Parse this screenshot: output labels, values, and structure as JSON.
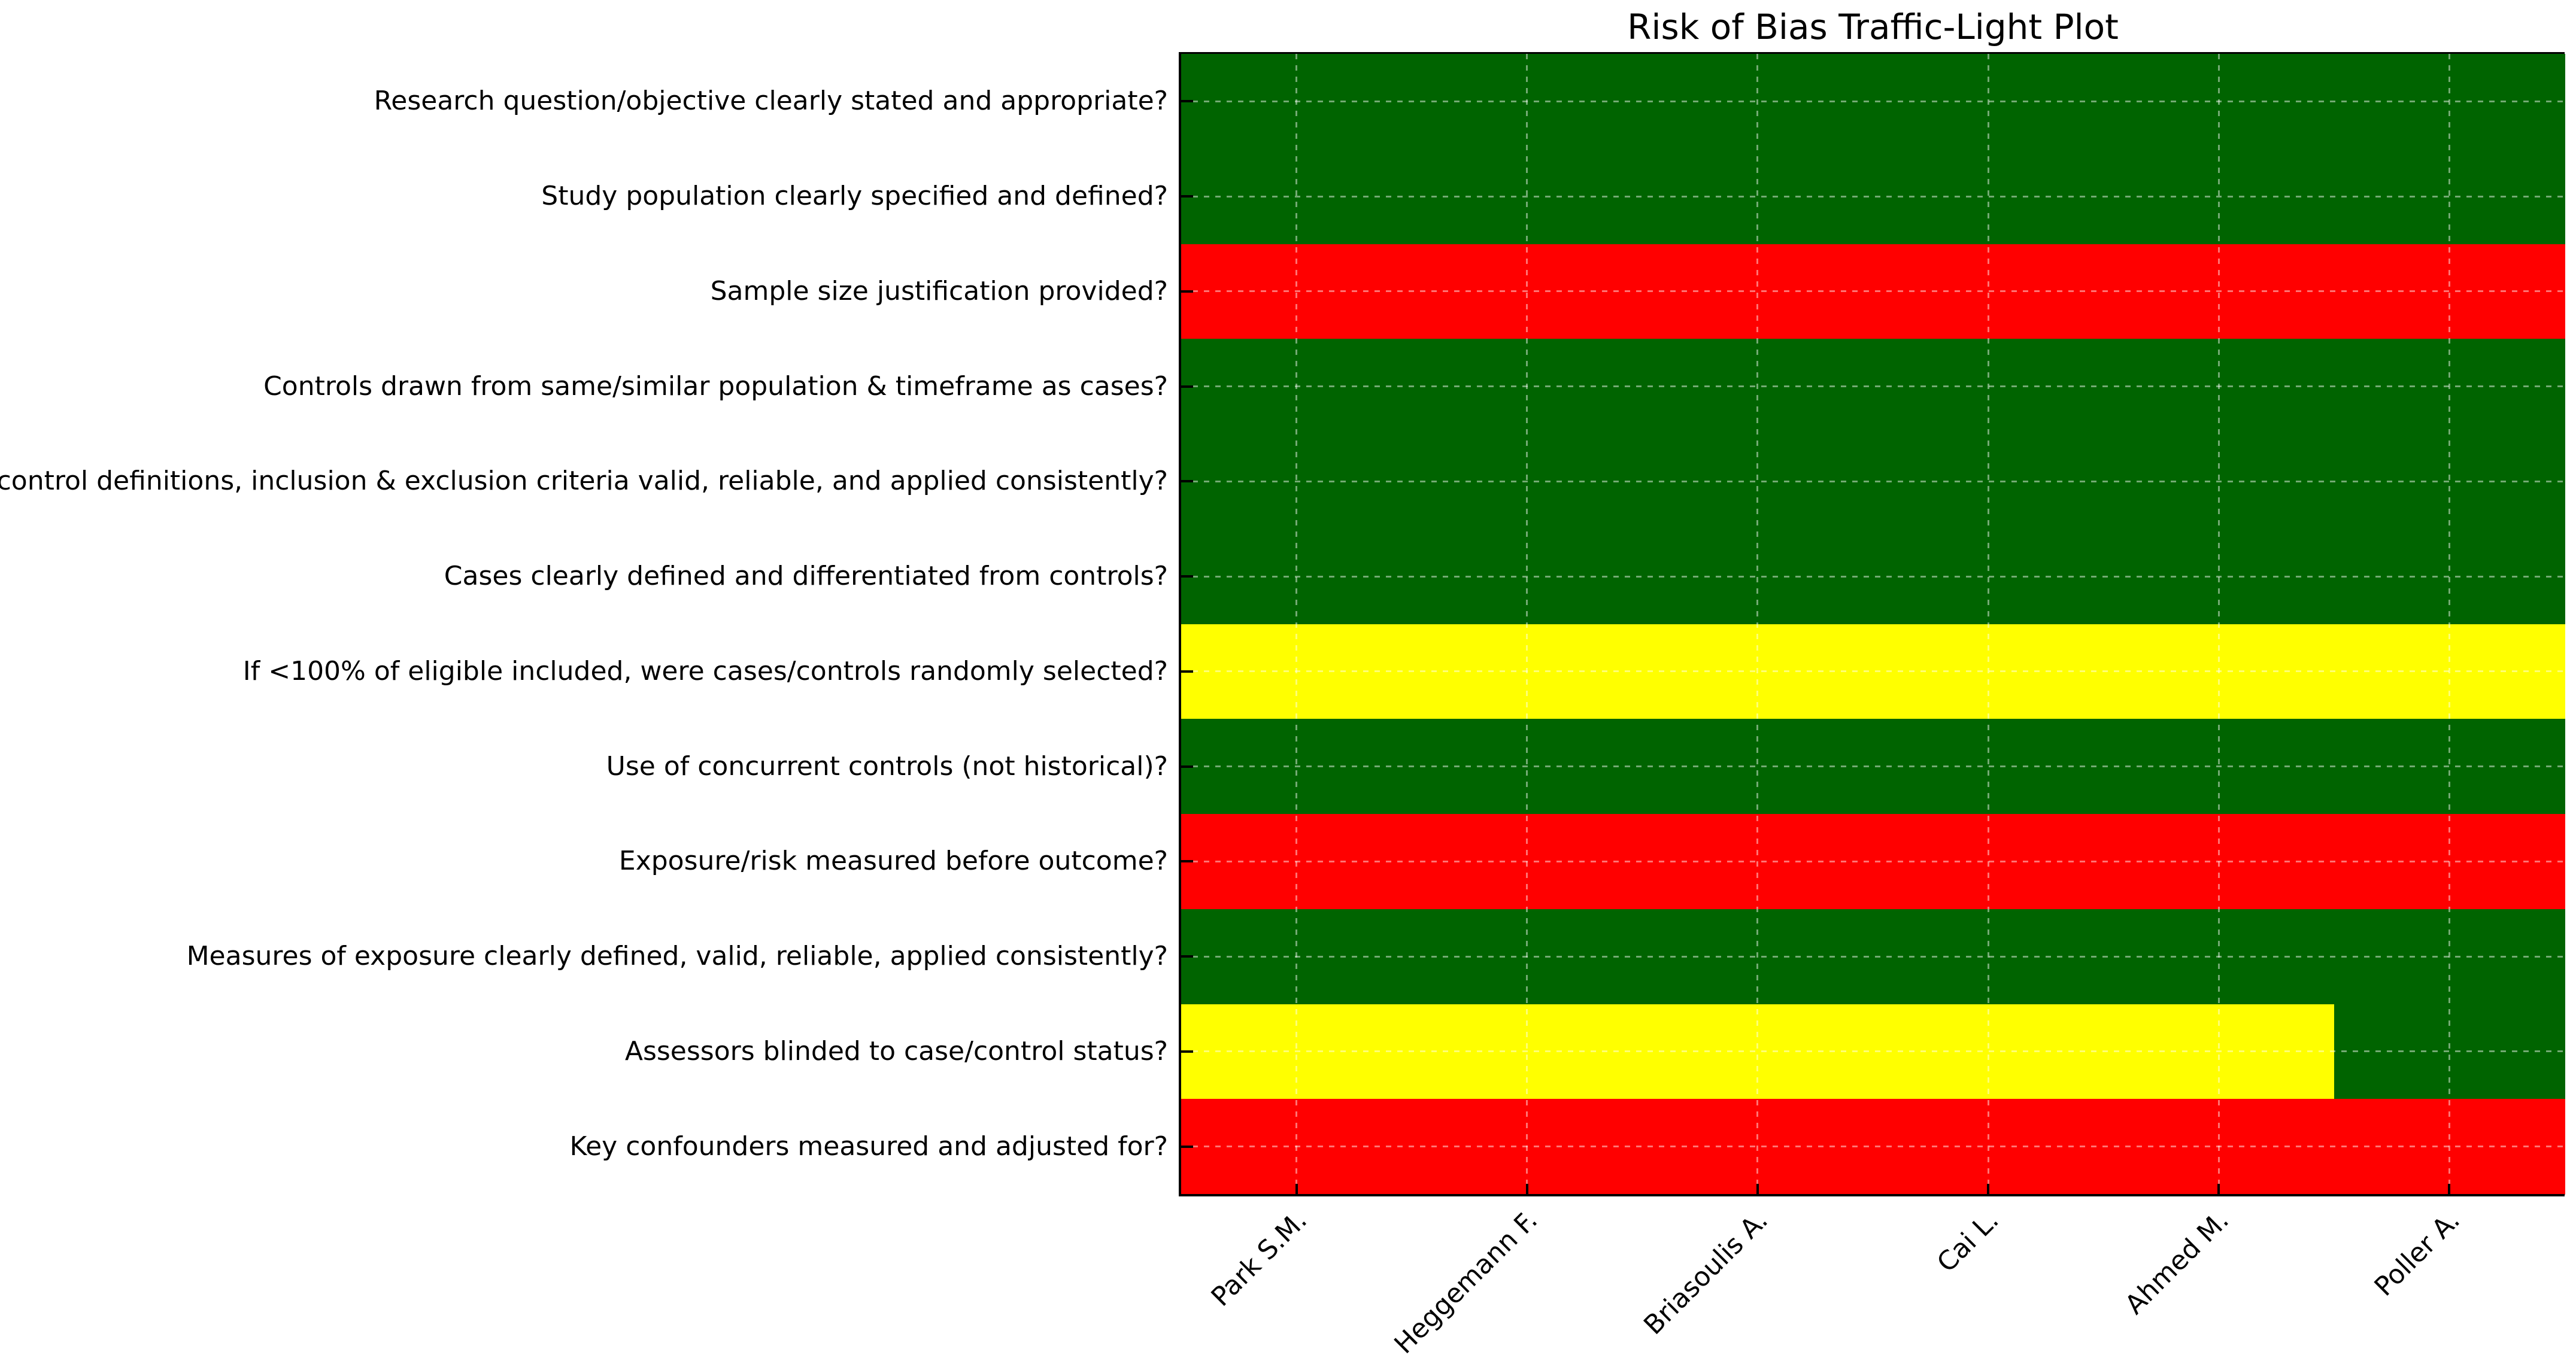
{
  "chart_data": {
    "type": "heatmap",
    "title": "Risk of Bias Traffic-Light Plot",
    "columns": [
      "Park S.M.",
      "Heggemann F.",
      "Briasoulis A.",
      "Cai L.",
      "Ahmed M.",
      "Poller A."
    ],
    "rows": [
      "Research question/objective clearly stated and appropriate?",
      "Study population clearly specified and defined?",
      "Sample size justification provided?",
      "Controls drawn from same/similar population & timeframe as cases?",
      "Case/control definitions, inclusion & exclusion criteria valid, reliable, and applied consistently?",
      "Cases clearly defined and differentiated from controls?",
      "If <100% of eligible included, were cases/controls randomly selected?",
      "Use of concurrent controls (not historical)?",
      "Exposure/risk measured before outcome?",
      "Measures of exposure clearly defined, valid, reliable, applied consistently?",
      "Assessors blinded to case/control status?",
      "Key confounders measured and adjusted for?"
    ],
    "judgments": [
      [
        "low",
        "low",
        "low",
        "low",
        "low",
        "low"
      ],
      [
        "low",
        "low",
        "low",
        "low",
        "low",
        "low"
      ],
      [
        "high",
        "high",
        "high",
        "high",
        "high",
        "high"
      ],
      [
        "low",
        "low",
        "low",
        "low",
        "low",
        "low"
      ],
      [
        "low",
        "low",
        "low",
        "low",
        "low",
        "low"
      ],
      [
        "low",
        "low",
        "low",
        "low",
        "low",
        "low"
      ],
      [
        "some",
        "some",
        "some",
        "some",
        "some",
        "some"
      ],
      [
        "low",
        "low",
        "low",
        "low",
        "low",
        "low"
      ],
      [
        "high",
        "high",
        "high",
        "high",
        "high",
        "high"
      ],
      [
        "low",
        "low",
        "low",
        "low",
        "low",
        "low"
      ],
      [
        "some",
        "some",
        "some",
        "some",
        "some",
        "low"
      ],
      [
        "high",
        "high",
        "high",
        "high",
        "high",
        "high"
      ]
    ],
    "judgment_colors": {
      "low": "#006400",
      "some": "#FFFF00",
      "high": "#FF0000"
    },
    "grid": {
      "style": "dashed",
      "color": "rgba(255,255,255,0.45)",
      "position": "cell-centers"
    },
    "x_tick_rotation": 45,
    "legend": "none",
    "text_color": "#000000",
    "background_color": "#FFFFFF"
  }
}
